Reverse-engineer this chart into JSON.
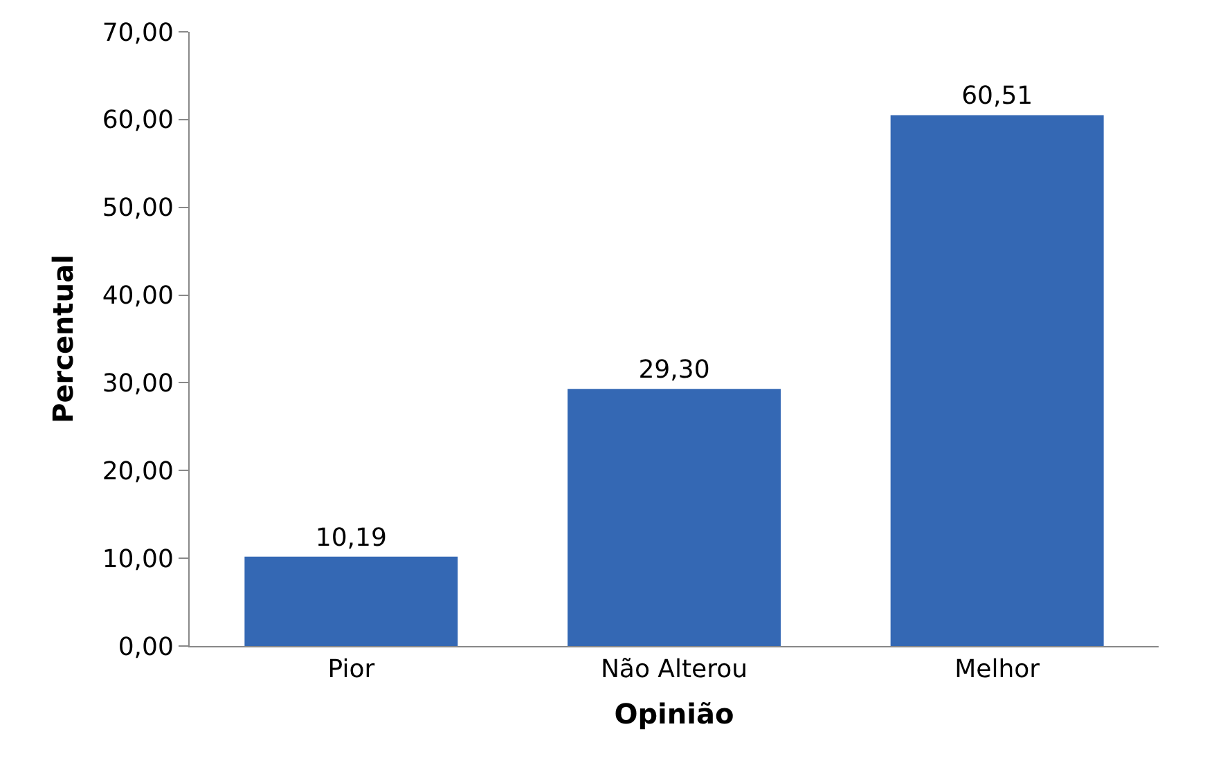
{
  "chart_data": {
    "type": "bar",
    "xlabel": "Opinião",
    "ylabel": "Percentual",
    "categories": [
      "Pior",
      "Não Alterou",
      "Melhor"
    ],
    "values": [
      10.19,
      29.3,
      60.51
    ],
    "value_labels": [
      "10,19",
      "29,30",
      "60,51"
    ],
    "color": "#3468b4",
    "ylim": [
      0,
      70
    ],
    "yticks": [
      {
        "value": 0,
        "label": "0,00"
      },
      {
        "value": 10,
        "label": "10,00"
      },
      {
        "value": 20,
        "label": "20,00"
      },
      {
        "value": 30,
        "label": "30,00"
      },
      {
        "value": 40,
        "label": "40,00"
      },
      {
        "value": 50,
        "label": "50,00"
      },
      {
        "value": 60,
        "label": "60,00"
      },
      {
        "value": 70,
        "label": "70,00"
      }
    ],
    "legend": false
  }
}
